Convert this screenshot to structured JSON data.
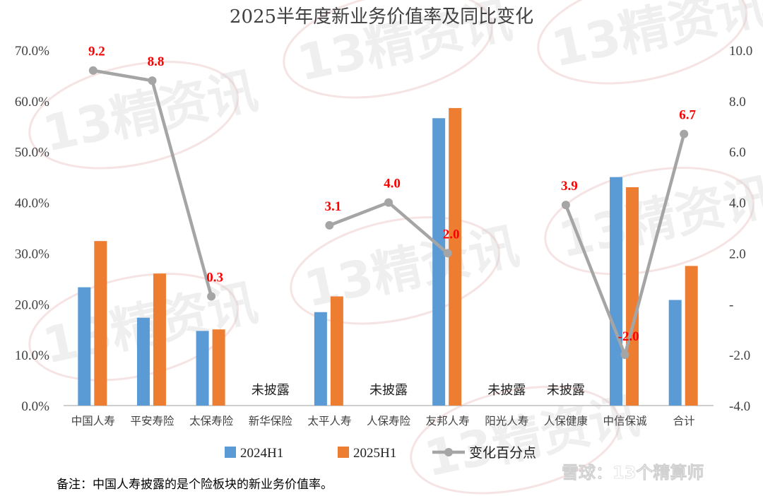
{
  "chart_data": {
    "type": "bar",
    "title": "2025半年度新业务价值率及同比变化",
    "categories": [
      "中国人寿",
      "平安寿险",
      "太保寿险",
      "新华保险",
      "太平人寿",
      "人保寿险",
      "友邦人寿",
      "阳光人寿",
      "人保健康",
      "中信保诚",
      "合计"
    ],
    "series": [
      {
        "name": "2024H1",
        "type": "bar",
        "axis": "left",
        "color": "#5b9bd5",
        "values": [
          23.3,
          17.3,
          14.7,
          null,
          18.4,
          null,
          56.6,
          null,
          null,
          45.0,
          20.8
        ]
      },
      {
        "name": "2025H1",
        "type": "bar",
        "axis": "left",
        "color": "#ed7d31",
        "values": [
          32.4,
          26.0,
          15.0,
          null,
          21.5,
          null,
          58.6,
          null,
          null,
          43.0,
          27.5
        ]
      },
      {
        "name": "变化百分点",
        "type": "line",
        "axis": "right",
        "color": "#a5a5a5",
        "values": [
          9.2,
          8.8,
          0.3,
          null,
          3.1,
          4.0,
          2.0,
          null,
          3.9,
          -2.0,
          6.7
        ],
        "labels": [
          "9.2",
          "8.8",
          "0.3",
          "",
          "3.1",
          "4.0",
          "2.0",
          "",
          "3.9",
          "-2.0",
          "6.7"
        ],
        "label_color": "#ff0000"
      }
    ],
    "undisclosed": [
      {
        "category": "新华保险",
        "text": "未披露"
      },
      {
        "category": "人保寿险",
        "text": "未披露"
      },
      {
        "category": "阳光人寿",
        "text": "未披露"
      },
      {
        "category": "人保健康",
        "text": "未披露"
      }
    ],
    "y_left": {
      "ylim": [
        0,
        70
      ],
      "ticks": [
        "0.0%",
        "10.0%",
        "20.0%",
        "30.0%",
        "40.0%",
        "50.0%",
        "60.0%",
        "70.0%"
      ]
    },
    "y_right": {
      "ylim": [
        -4,
        10
      ],
      "ticks": [
        "-4.0",
        "-2.0",
        "-",
        "2.0",
        "4.0",
        "6.0",
        "8.0",
        "10.0"
      ]
    },
    "grid": false,
    "legend": {
      "position": "bottom",
      "entries": [
        "2024H1",
        "2025H1",
        "变化百分点"
      ]
    }
  },
  "footnote": "备注：中国人寿披露的是个险板块的新业务价值率。",
  "watermark": {
    "text": "13精资讯"
  },
  "brand": {
    "text": "雪球：13个精算师",
    "icon": "snowball-logo-icon"
  }
}
